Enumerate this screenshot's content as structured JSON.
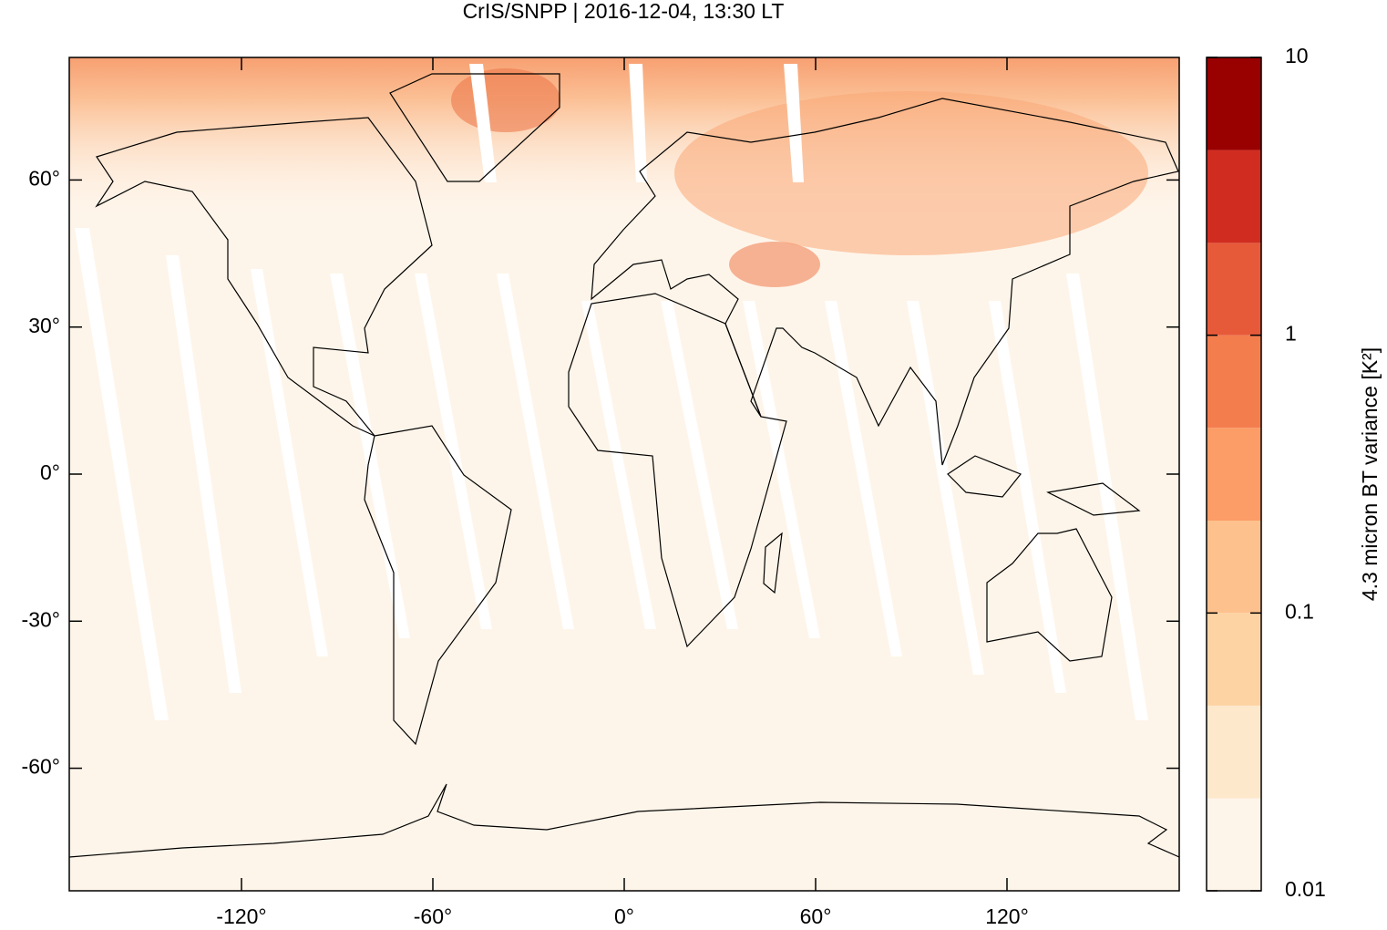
{
  "chart_data": {
    "type": "map",
    "title": "CrIS/SNPP | 2016-12-04, 13:30 LT",
    "xlim": [
      -174,
      174
    ],
    "ylim": [
      -85,
      85
    ],
    "xticks": [
      {
        "value": -120,
        "label": "-120°"
      },
      {
        "value": -60,
        "label": "-60°"
      },
      {
        "value": 0,
        "label": "0°"
      },
      {
        "value": 60,
        "label": "60°"
      },
      {
        "value": 120,
        "label": "120°"
      }
    ],
    "yticks": [
      {
        "value": -60,
        "label": "-60°"
      },
      {
        "value": -30,
        "label": "-30°"
      },
      {
        "value": 0,
        "label": "0°"
      },
      {
        "value": 30,
        "label": "30°"
      },
      {
        "value": 60,
        "label": "60°"
      }
    ],
    "colorbar": {
      "label": "4.3 micron BT variance [K²]",
      "log": true,
      "lim": [
        0.01,
        10
      ],
      "ticks": [
        0.01,
        0.1,
        1,
        10
      ],
      "levels": [
        0.01,
        0.0215,
        0.0464,
        0.1,
        0.215,
        0.464,
        1,
        2.15,
        4.64,
        10
      ],
      "colors": [
        "#fef5ea",
        "#fde8cc",
        "#fdd3a4",
        "#fdc18d",
        "#fc9c66",
        "#f47d4e",
        "#e65a3a",
        "#d02d20",
        "#990000"
      ]
    }
  }
}
